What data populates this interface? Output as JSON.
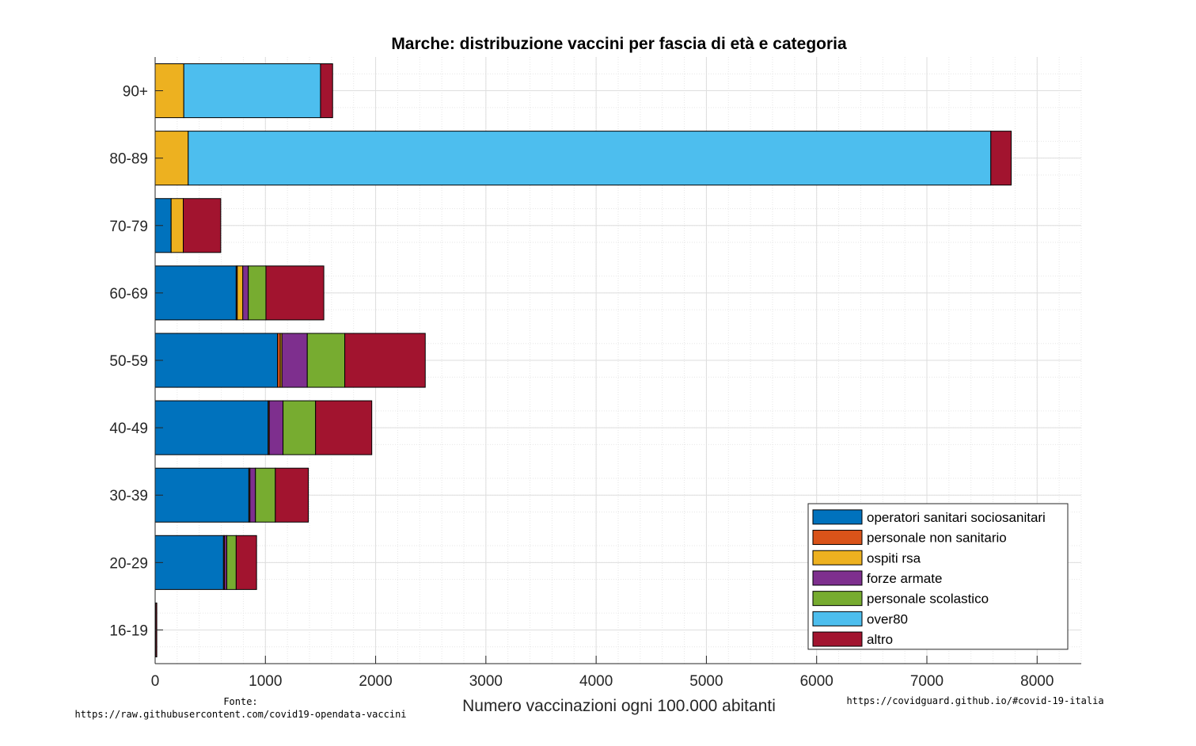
{
  "chart_data": {
    "type": "bar",
    "orientation": "horizontal",
    "stacked": true,
    "title": "Marche: distribuzione vaccini per fascia di età e categoria",
    "xlabel": "Numero vaccinazioni ogni 100.000 abitanti",
    "ylabel": "",
    "xlim": [
      0,
      8400
    ],
    "xticks": [
      0,
      1000,
      2000,
      3000,
      4000,
      5000,
      6000,
      7000,
      8000
    ],
    "xtick_labels": [
      "0",
      "1000",
      "2000",
      "3000",
      "4000",
      "5000",
      "6000",
      "7000",
      "8000"
    ],
    "grid": true,
    "minor_grid": true,
    "legend_position": "bottom-right",
    "categories": [
      "90+",
      "80-89",
      "70-79",
      "60-69",
      "50-59",
      "40-49",
      "30-39",
      "20-29",
      "16-19"
    ],
    "series": [
      {
        "name": "operatori sanitari sociosanitari",
        "color": "#0072BD",
        "values": [
          0,
          0,
          145,
          735,
          1110,
          1025,
          850,
          620,
          5
        ]
      },
      {
        "name": "personale non sanitario",
        "color": "#D95319",
        "values": [
          0,
          0,
          0,
          10,
          25,
          10,
          10,
          10,
          0
        ]
      },
      {
        "name": "ospiti rsa",
        "color": "#EDB120",
        "values": [
          260,
          300,
          110,
          50,
          15,
          0,
          0,
          0,
          0
        ]
      },
      {
        "name": "forze armate",
        "color": "#7E2F8E",
        "values": [
          0,
          0,
          0,
          50,
          230,
          125,
          50,
          20,
          0
        ]
      },
      {
        "name": "personale scolastico",
        "color": "#77AC30",
        "values": [
          0,
          0,
          0,
          160,
          340,
          295,
          180,
          85,
          0
        ]
      },
      {
        "name": "over80",
        "color": "#4DBEEE",
        "values": [
          1240,
          7280,
          0,
          0,
          0,
          0,
          0,
          0,
          0
        ]
      },
      {
        "name": "altro",
        "color": "#A2142F",
        "values": [
          110,
          185,
          340,
          525,
          730,
          510,
          300,
          185,
          10
        ]
      }
    ]
  },
  "footer": {
    "source_label": "Fonte:",
    "source_url": "https://raw.githubusercontent.com/covid19-opendata-vaccini",
    "site_url": "https://covidguard.github.io/#covid-19-italia"
  }
}
